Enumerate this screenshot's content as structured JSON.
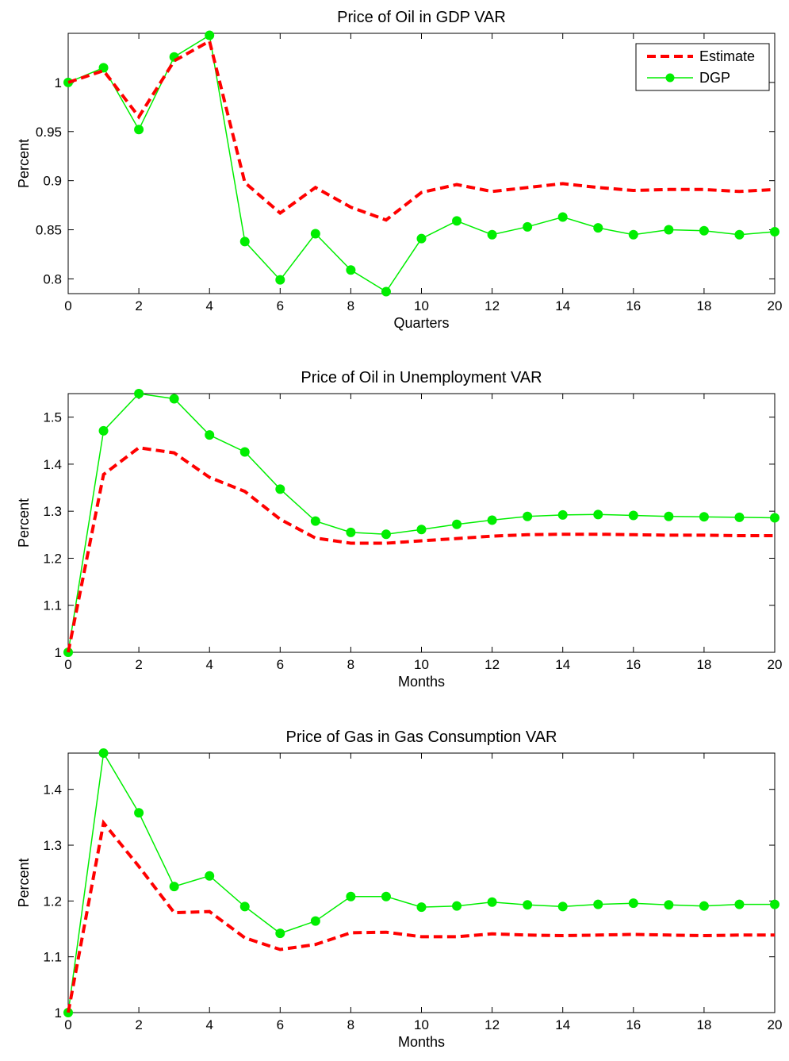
{
  "chart_data": [
    {
      "type": "line",
      "title": "Price of Oil in GDP VAR",
      "xlabel": "Quarters",
      "ylabel": "Percent",
      "xlim": [
        0,
        20
      ],
      "ylim": [
        0.785,
        1.05
      ],
      "xticks": [
        0,
        2,
        4,
        6,
        8,
        10,
        12,
        14,
        16,
        18,
        20
      ],
      "yticks": [
        0.8,
        0.85,
        0.9,
        0.95,
        1
      ],
      "ytick_labels": [
        "0.8",
        "0.85",
        "0.9",
        "0.95",
        "1"
      ],
      "grid": false,
      "legend": {
        "placement": "top-right",
        "entries": [
          "Estimate",
          "DGP"
        ]
      },
      "x": [
        0,
        1,
        2,
        3,
        4,
        5,
        6,
        7,
        8,
        9,
        10,
        11,
        12,
        13,
        14,
        15,
        16,
        17,
        18,
        19,
        20
      ],
      "series": [
        {
          "name": "Estimate",
          "color": "#ff0000",
          "style": "dashed",
          "values": [
            1.0,
            1.012,
            0.965,
            1.022,
            1.042,
            0.898,
            0.867,
            0.893,
            0.873,
            0.86,
            0.888,
            0.896,
            0.889,
            0.893,
            0.897,
            0.893,
            0.89,
            0.891,
            0.891,
            0.889,
            0.891
          ]
        },
        {
          "name": "DGP",
          "color": "#00ee00",
          "style": "solid-marker",
          "values": [
            1.0,
            1.015,
            0.952,
            1.026,
            1.048,
            0.838,
            0.799,
            0.846,
            0.809,
            0.787,
            0.841,
            0.859,
            0.845,
            0.853,
            0.863,
            0.852,
            0.845,
            0.85,
            0.849,
            0.845,
            0.848
          ]
        }
      ]
    },
    {
      "type": "line",
      "title": "Price of Oil in Unemployment VAR",
      "xlabel": "Months",
      "ylabel": "Percent",
      "xlim": [
        0,
        20
      ],
      "ylim": [
        1.0,
        1.55
      ],
      "xticks": [
        0,
        2,
        4,
        6,
        8,
        10,
        12,
        14,
        16,
        18,
        20
      ],
      "yticks": [
        1,
        1.1,
        1.2,
        1.3,
        1.4,
        1.5
      ],
      "ytick_labels": [
        "1",
        "1.1",
        "1.2",
        "1.3",
        "1.4",
        "1.5"
      ],
      "grid": false,
      "x": [
        0,
        1,
        2,
        3,
        4,
        5,
        6,
        7,
        8,
        9,
        10,
        11,
        12,
        13,
        14,
        15,
        16,
        17,
        18,
        19,
        20
      ],
      "series": [
        {
          "name": "Estimate",
          "color": "#ff0000",
          "style": "dashed",
          "values": [
            1.0,
            1.378,
            1.435,
            1.424,
            1.372,
            1.342,
            1.283,
            1.243,
            1.232,
            1.232,
            1.237,
            1.242,
            1.247,
            1.25,
            1.251,
            1.251,
            1.25,
            1.249,
            1.249,
            1.248,
            1.248
          ]
        },
        {
          "name": "DGP",
          "color": "#00ee00",
          "style": "solid-marker",
          "values": [
            1.0,
            1.471,
            1.55,
            1.539,
            1.462,
            1.426,
            1.347,
            1.279,
            1.255,
            1.251,
            1.261,
            1.272,
            1.281,
            1.289,
            1.292,
            1.293,
            1.291,
            1.289,
            1.288,
            1.287,
            1.286
          ]
        }
      ]
    },
    {
      "type": "line",
      "title": "Price of Gas in Gas Consumption VAR",
      "xlabel": "Months",
      "ylabel": "Percent",
      "xlim": [
        0,
        20
      ],
      "ylim": [
        1.0,
        1.465
      ],
      "xticks": [
        0,
        2,
        4,
        6,
        8,
        10,
        12,
        14,
        16,
        18,
        20
      ],
      "yticks": [
        1,
        1.1,
        1.2,
        1.3,
        1.4
      ],
      "ytick_labels": [
        "1",
        "1.1",
        "1.2",
        "1.3",
        "1.4"
      ],
      "grid": false,
      "x": [
        0,
        1,
        2,
        3,
        4,
        5,
        6,
        7,
        8,
        9,
        10,
        11,
        12,
        13,
        14,
        15,
        16,
        17,
        18,
        19,
        20
      ],
      "series": [
        {
          "name": "Estimate",
          "color": "#ff0000",
          "style": "dashed",
          "values": [
            1.0,
            1.34,
            1.262,
            1.179,
            1.181,
            1.134,
            1.113,
            1.122,
            1.143,
            1.144,
            1.136,
            1.136,
            1.141,
            1.139,
            1.138,
            1.139,
            1.14,
            1.139,
            1.138,
            1.139,
            1.139
          ]
        },
        {
          "name": "DGP",
          "color": "#00ee00",
          "style": "solid-marker",
          "values": [
            1.0,
            1.465,
            1.358,
            1.226,
            1.245,
            1.19,
            1.142,
            1.164,
            1.208,
            1.208,
            1.189,
            1.191,
            1.198,
            1.193,
            1.19,
            1.194,
            1.196,
            1.193,
            1.191,
            1.194,
            1.194
          ]
        }
      ]
    }
  ]
}
